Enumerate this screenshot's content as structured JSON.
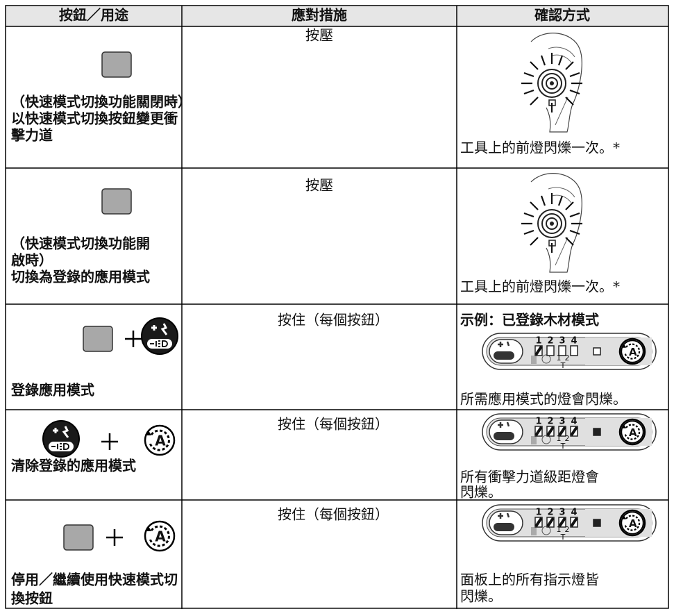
{
  "header": [
    "按鈕／用途",
    "應對措施",
    "確認方式"
  ],
  "rows": [
    {
      "button": [
        "（快速模式切換功能關閉時）",
        "以快速模式切換按鈕變更衝",
        "擊力道"
      ],
      "action": "按壓",
      "confirm": [
        "工具上的前燈閃爍一次。*"
      ]
    },
    {
      "button": [
        "（快速模式切換功能開",
        "啟時）",
        "切換為登錄的應用模式"
      ],
      "action": "按壓",
      "confirm": [
        "工具上的前燈閃爍一次。*"
      ]
    },
    {
      "button": [
        "登錄應用模式"
      ],
      "action": "按住（每個按鈕）",
      "confirm_heading": "示例：已登錄木材模式",
      "confirm": [
        "所需應用模式的燈會閃爍。"
      ]
    },
    {
      "button": [
        "清除登錄的應用模式"
      ],
      "action": "按住（每個按鈕）",
      "confirm": [
        "所有衝擊力道級距燈會",
        "閃爍。"
      ]
    },
    {
      "button": [
        "停用／繼續使用快速模式切",
        "換按鈕"
      ],
      "action": "按住（每個按鈕）",
      "confirm": [
        "面板上的所有指示燈皆",
        "閃爍。"
      ]
    }
  ],
  "panel_digits": [
    "1",
    "2",
    "3",
    "4"
  ],
  "panel_sub": [
    "1",
    "2",
    "T"
  ],
  "icon_letter": "A"
}
